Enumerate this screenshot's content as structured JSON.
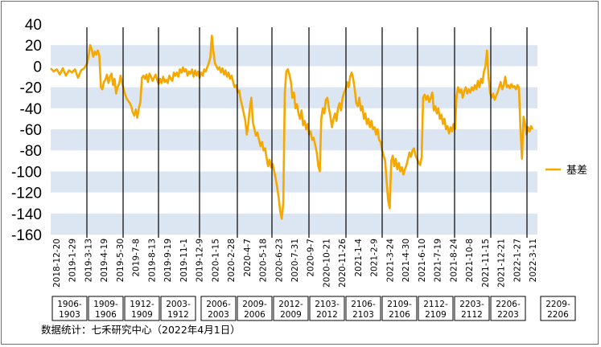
{
  "chart_data": {
    "type": "line",
    "ylim": [
      -160,
      40
    ],
    "yticks": [
      40,
      20,
      0,
      -20,
      -40,
      -60,
      -80,
      -100,
      -120,
      -140,
      -160
    ],
    "grid": "alternating horizontal bands",
    "legend_position": "right",
    "x_tick_labels": [
      "2018-12-20",
      "2019-1-29",
      "2019-3-13",
      "2019-4-19",
      "2019-5-30",
      "2019-7-8",
      "2019-8-13",
      "2019-9-19",
      "2019-11-1",
      "2019-12-9",
      "2020-1-15",
      "2020-2-28",
      "2020-4-7",
      "2020-5-18",
      "2020-6-23",
      "2020-7-31",
      "2020-9-7",
      "2020-10-21",
      "2020-11-26",
      "2021-1-4",
      "2021-2-9",
      "2021-3-24",
      "2021-4-30",
      "2021-6-10",
      "2021-7-19",
      "2021-8-24",
      "2021-10-8",
      "2021-11-15",
      "2021-12-21",
      "2022-1-27",
      "2022-3-11"
    ],
    "contracts": [
      "1906-1903",
      "1909-1906",
      "1912-1909",
      "2003-1912",
      "2006-2003",
      "2009-2006",
      "2012-2009",
      "2103-2012",
      "2106-2103",
      "2109-2106",
      "2112-2109",
      "2203-2112",
      "2206-2203",
      "2209-2206"
    ],
    "series": [
      {
        "name": "基差",
        "color": "#f5a800",
        "points": [
          [
            0,
            -2
          ],
          [
            2,
            -5
          ],
          [
            4,
            -3
          ],
          [
            6,
            -8
          ],
          [
            8,
            -2
          ],
          [
            10,
            -9
          ],
          [
            12,
            -4
          ],
          [
            14,
            -6
          ],
          [
            16,
            -3
          ],
          [
            18,
            -11
          ],
          [
            20,
            -4
          ],
          [
            22,
            -2
          ],
          [
            24,
            3
          ],
          [
            25,
            10
          ],
          [
            26,
            20
          ],
          [
            27,
            16
          ],
          [
            28,
            9
          ],
          [
            29,
            14
          ],
          [
            30,
            11
          ],
          [
            31,
            15
          ],
          [
            32,
            10
          ],
          [
            33,
            -20
          ],
          [
            34,
            -22
          ],
          [
            35,
            -15
          ],
          [
            36,
            -13
          ],
          [
            37,
            -8
          ],
          [
            38,
            -16
          ],
          [
            39,
            -10
          ],
          [
            40,
            -7
          ],
          [
            41,
            -18
          ],
          [
            42,
            -12
          ],
          [
            43,
            -26
          ],
          [
            44,
            -20
          ],
          [
            45,
            -17
          ],
          [
            46,
            -9
          ],
          [
            47,
            -16
          ],
          [
            48,
            -22
          ],
          [
            49,
            -27
          ],
          [
            50,
            -31
          ],
          [
            51,
            -33
          ],
          [
            52,
            -35
          ],
          [
            53,
            -38
          ],
          [
            54,
            -44
          ],
          [
            55,
            -47
          ],
          [
            56,
            -41
          ],
          [
            57,
            -49
          ],
          [
            58,
            -40
          ],
          [
            59,
            -34
          ],
          [
            60,
            -11
          ],
          [
            61,
            -9
          ],
          [
            62,
            -12
          ],
          [
            63,
            -8
          ],
          [
            64,
            -15
          ],
          [
            65,
            -7
          ],
          [
            66,
            -10
          ],
          [
            67,
            -14
          ],
          [
            68,
            -11
          ],
          [
            69,
            -8
          ],
          [
            70,
            -13
          ],
          [
            71,
            -17
          ],
          [
            72,
            -12
          ],
          [
            73,
            -16
          ],
          [
            74,
            -10
          ],
          [
            75,
            -15
          ],
          [
            76,
            -13
          ],
          [
            77,
            -16
          ],
          [
            78,
            -9
          ],
          [
            79,
            -12
          ],
          [
            80,
            -14
          ],
          [
            81,
            -6
          ],
          [
            82,
            -9
          ],
          [
            83,
            -6
          ],
          [
            84,
            -10
          ],
          [
            85,
            -3
          ],
          [
            86,
            -6
          ],
          [
            87,
            -1
          ],
          [
            88,
            -5
          ],
          [
            89,
            -3
          ],
          [
            90,
            -9
          ],
          [
            91,
            -5
          ],
          [
            92,
            -7
          ],
          [
            93,
            -3
          ],
          [
            94,
            -10
          ],
          [
            95,
            -4
          ],
          [
            96,
            -9
          ],
          [
            97,
            -5
          ],
          [
            98,
            -11
          ],
          [
            99,
            -6
          ],
          [
            100,
            -9
          ],
          [
            101,
            -3
          ],
          [
            102,
            -5
          ],
          [
            103,
            -1
          ],
          [
            104,
            3
          ],
          [
            105,
            8
          ],
          [
            106,
            29
          ],
          [
            107,
            14
          ],
          [
            108,
            3
          ],
          [
            109,
            0
          ],
          [
            110,
            -3
          ],
          [
            111,
            -1
          ],
          [
            112,
            -6
          ],
          [
            113,
            -2
          ],
          [
            114,
            -8
          ],
          [
            115,
            -4
          ],
          [
            116,
            -10
          ],
          [
            117,
            -6
          ],
          [
            118,
            -12
          ],
          [
            119,
            -9
          ],
          [
            120,
            -15
          ],
          [
            121,
            -20
          ],
          [
            122,
            -18
          ],
          [
            123,
            -25
          ],
          [
            124,
            -23
          ],
          [
            125,
            -32
          ],
          [
            126,
            -38
          ],
          [
            127,
            -45
          ],
          [
            128,
            -52
          ],
          [
            129,
            -65
          ],
          [
            130,
            -55
          ],
          [
            131,
            -40
          ],
          [
            132,
            -30
          ],
          [
            133,
            -53
          ],
          [
            134,
            -60
          ],
          [
            135,
            -66
          ],
          [
            136,
            -63
          ],
          [
            137,
            -70
          ],
          [
            138,
            -76
          ],
          [
            139,
            -72
          ],
          [
            140,
            -80
          ],
          [
            141,
            -78
          ],
          [
            142,
            -87
          ],
          [
            143,
            -95
          ],
          [
            144,
            -89
          ],
          [
            145,
            -96
          ],
          [
            146,
            -93
          ],
          [
            147,
            -100
          ],
          [
            148,
            -107
          ],
          [
            149,
            -115
          ],
          [
            150,
            -125
          ],
          [
            151,
            -138
          ],
          [
            152,
            -145
          ],
          [
            153,
            -130
          ],
          [
            154,
            -25
          ],
          [
            155,
            -5
          ],
          [
            156,
            -3
          ],
          [
            157,
            -8
          ],
          [
            158,
            -15
          ],
          [
            159,
            -30
          ],
          [
            160,
            -25
          ],
          [
            161,
            -40
          ],
          [
            162,
            -36
          ],
          [
            163,
            -45
          ],
          [
            164,
            -50
          ],
          [
            165,
            -42
          ],
          [
            166,
            -56
          ],
          [
            167,
            -52
          ],
          [
            168,
            -60
          ],
          [
            169,
            -55
          ],
          [
            170,
            -65
          ],
          [
            171,
            -62
          ],
          [
            172,
            -70
          ],
          [
            173,
            -68
          ],
          [
            174,
            -75
          ],
          [
            175,
            -82
          ],
          [
            176,
            -95
          ],
          [
            177,
            -100
          ],
          [
            178,
            -50
          ],
          [
            179,
            -40
          ],
          [
            180,
            -45
          ],
          [
            181,
            -32
          ],
          [
            182,
            -30
          ],
          [
            183,
            -40
          ],
          [
            184,
            -48
          ],
          [
            185,
            -58
          ],
          [
            186,
            -50
          ],
          [
            187,
            -45
          ],
          [
            188,
            -52
          ],
          [
            189,
            -40
          ],
          [
            190,
            -35
          ],
          [
            191,
            -42
          ],
          [
            192,
            -30
          ],
          [
            193,
            -25
          ],
          [
            194,
            -22
          ],
          [
            195,
            -15
          ],
          [
            196,
            -20
          ],
          [
            197,
            -10
          ],
          [
            198,
            -6
          ],
          [
            199,
            -12
          ],
          [
            200,
            -22
          ],
          [
            201,
            -35
          ],
          [
            202,
            -38
          ],
          [
            203,
            -30
          ],
          [
            204,
            -42
          ],
          [
            205,
            -38
          ],
          [
            206,
            -50
          ],
          [
            207,
            -45
          ],
          [
            208,
            -55
          ],
          [
            209,
            -50
          ],
          [
            210,
            -58
          ],
          [
            211,
            -52
          ],
          [
            212,
            -60
          ],
          [
            213,
            -58
          ],
          [
            214,
            -65
          ],
          [
            215,
            -60
          ],
          [
            216,
            -70
          ],
          [
            217,
            -72
          ],
          [
            218,
            -80
          ],
          [
            219,
            -85
          ],
          [
            220,
            -90
          ],
          [
            221,
            -110
          ],
          [
            222,
            -128
          ],
          [
            223,
            -135
          ],
          [
            224,
            -90
          ],
          [
            225,
            -85
          ],
          [
            226,
            -95
          ],
          [
            227,
            -88
          ],
          [
            228,
            -98
          ],
          [
            229,
            -92
          ],
          [
            230,
            -100
          ],
          [
            231,
            -96
          ],
          [
            232,
            -103
          ],
          [
            233,
            -98
          ],
          [
            234,
            -94
          ],
          [
            235,
            -88
          ],
          [
            236,
            -82
          ],
          [
            237,
            -86
          ],
          [
            238,
            -80
          ],
          [
            239,
            -78
          ],
          [
            240,
            -85
          ],
          [
            241,
            -88
          ],
          [
            242,
            -92
          ],
          [
            243,
            -94
          ],
          [
            244,
            -86
          ],
          [
            245,
            -30
          ],
          [
            246,
            -27
          ],
          [
            247,
            -32
          ],
          [
            248,
            -28
          ],
          [
            249,
            -34
          ],
          [
            250,
            -30
          ],
          [
            251,
            -25
          ],
          [
            252,
            -42
          ],
          [
            253,
            -38
          ],
          [
            254,
            -45
          ],
          [
            255,
            -40
          ],
          [
            256,
            -50
          ],
          [
            257,
            -46
          ],
          [
            258,
            -55
          ],
          [
            259,
            -50
          ],
          [
            260,
            -60
          ],
          [
            261,
            -57
          ],
          [
            262,
            -64
          ],
          [
            263,
            -58
          ],
          [
            264,
            -62
          ],
          [
            265,
            -55
          ],
          [
            266,
            -60
          ],
          [
            267,
            -28
          ],
          [
            268,
            -20
          ],
          [
            269,
            -25
          ],
          [
            270,
            -22
          ],
          [
            271,
            -30
          ],
          [
            272,
            -24
          ],
          [
            273,
            -20
          ],
          [
            274,
            -26
          ],
          [
            275,
            -22
          ],
          [
            276,
            -25
          ],
          [
            277,
            -20
          ],
          [
            278,
            -23
          ],
          [
            279,
            -18
          ],
          [
            280,
            -22
          ],
          [
            281,
            -14
          ],
          [
            282,
            -20
          ],
          [
            283,
            -12
          ],
          [
            284,
            -16
          ],
          [
            285,
            -5
          ],
          [
            286,
            0
          ],
          [
            287,
            15
          ],
          [
            288,
            -10
          ],
          [
            289,
            -25
          ],
          [
            290,
            -30
          ],
          [
            291,
            -26
          ],
          [
            292,
            -32
          ],
          [
            293,
            -28
          ],
          [
            294,
            -25
          ],
          [
            295,
            -20
          ],
          [
            296,
            -15
          ],
          [
            297,
            -22
          ],
          [
            298,
            -18
          ],
          [
            299,
            -10
          ],
          [
            300,
            -20
          ],
          [
            301,
            -18
          ],
          [
            302,
            -21
          ],
          [
            303,
            -17
          ],
          [
            304,
            -20
          ],
          [
            305,
            -19
          ],
          [
            306,
            -22
          ],
          [
            307,
            -18
          ],
          [
            308,
            -20
          ],
          [
            309,
            -60
          ],
          [
            310,
            -88
          ],
          [
            311,
            -48
          ],
          [
            312,
            -55
          ],
          [
            313,
            -65
          ],
          [
            314,
            -58
          ],
          [
            315,
            -62
          ],
          [
            316,
            -57
          ],
          [
            317,
            -60
          ]
        ]
      }
    ]
  },
  "source_note": "数据统计：七禾研究中心（2022年4月1日）"
}
